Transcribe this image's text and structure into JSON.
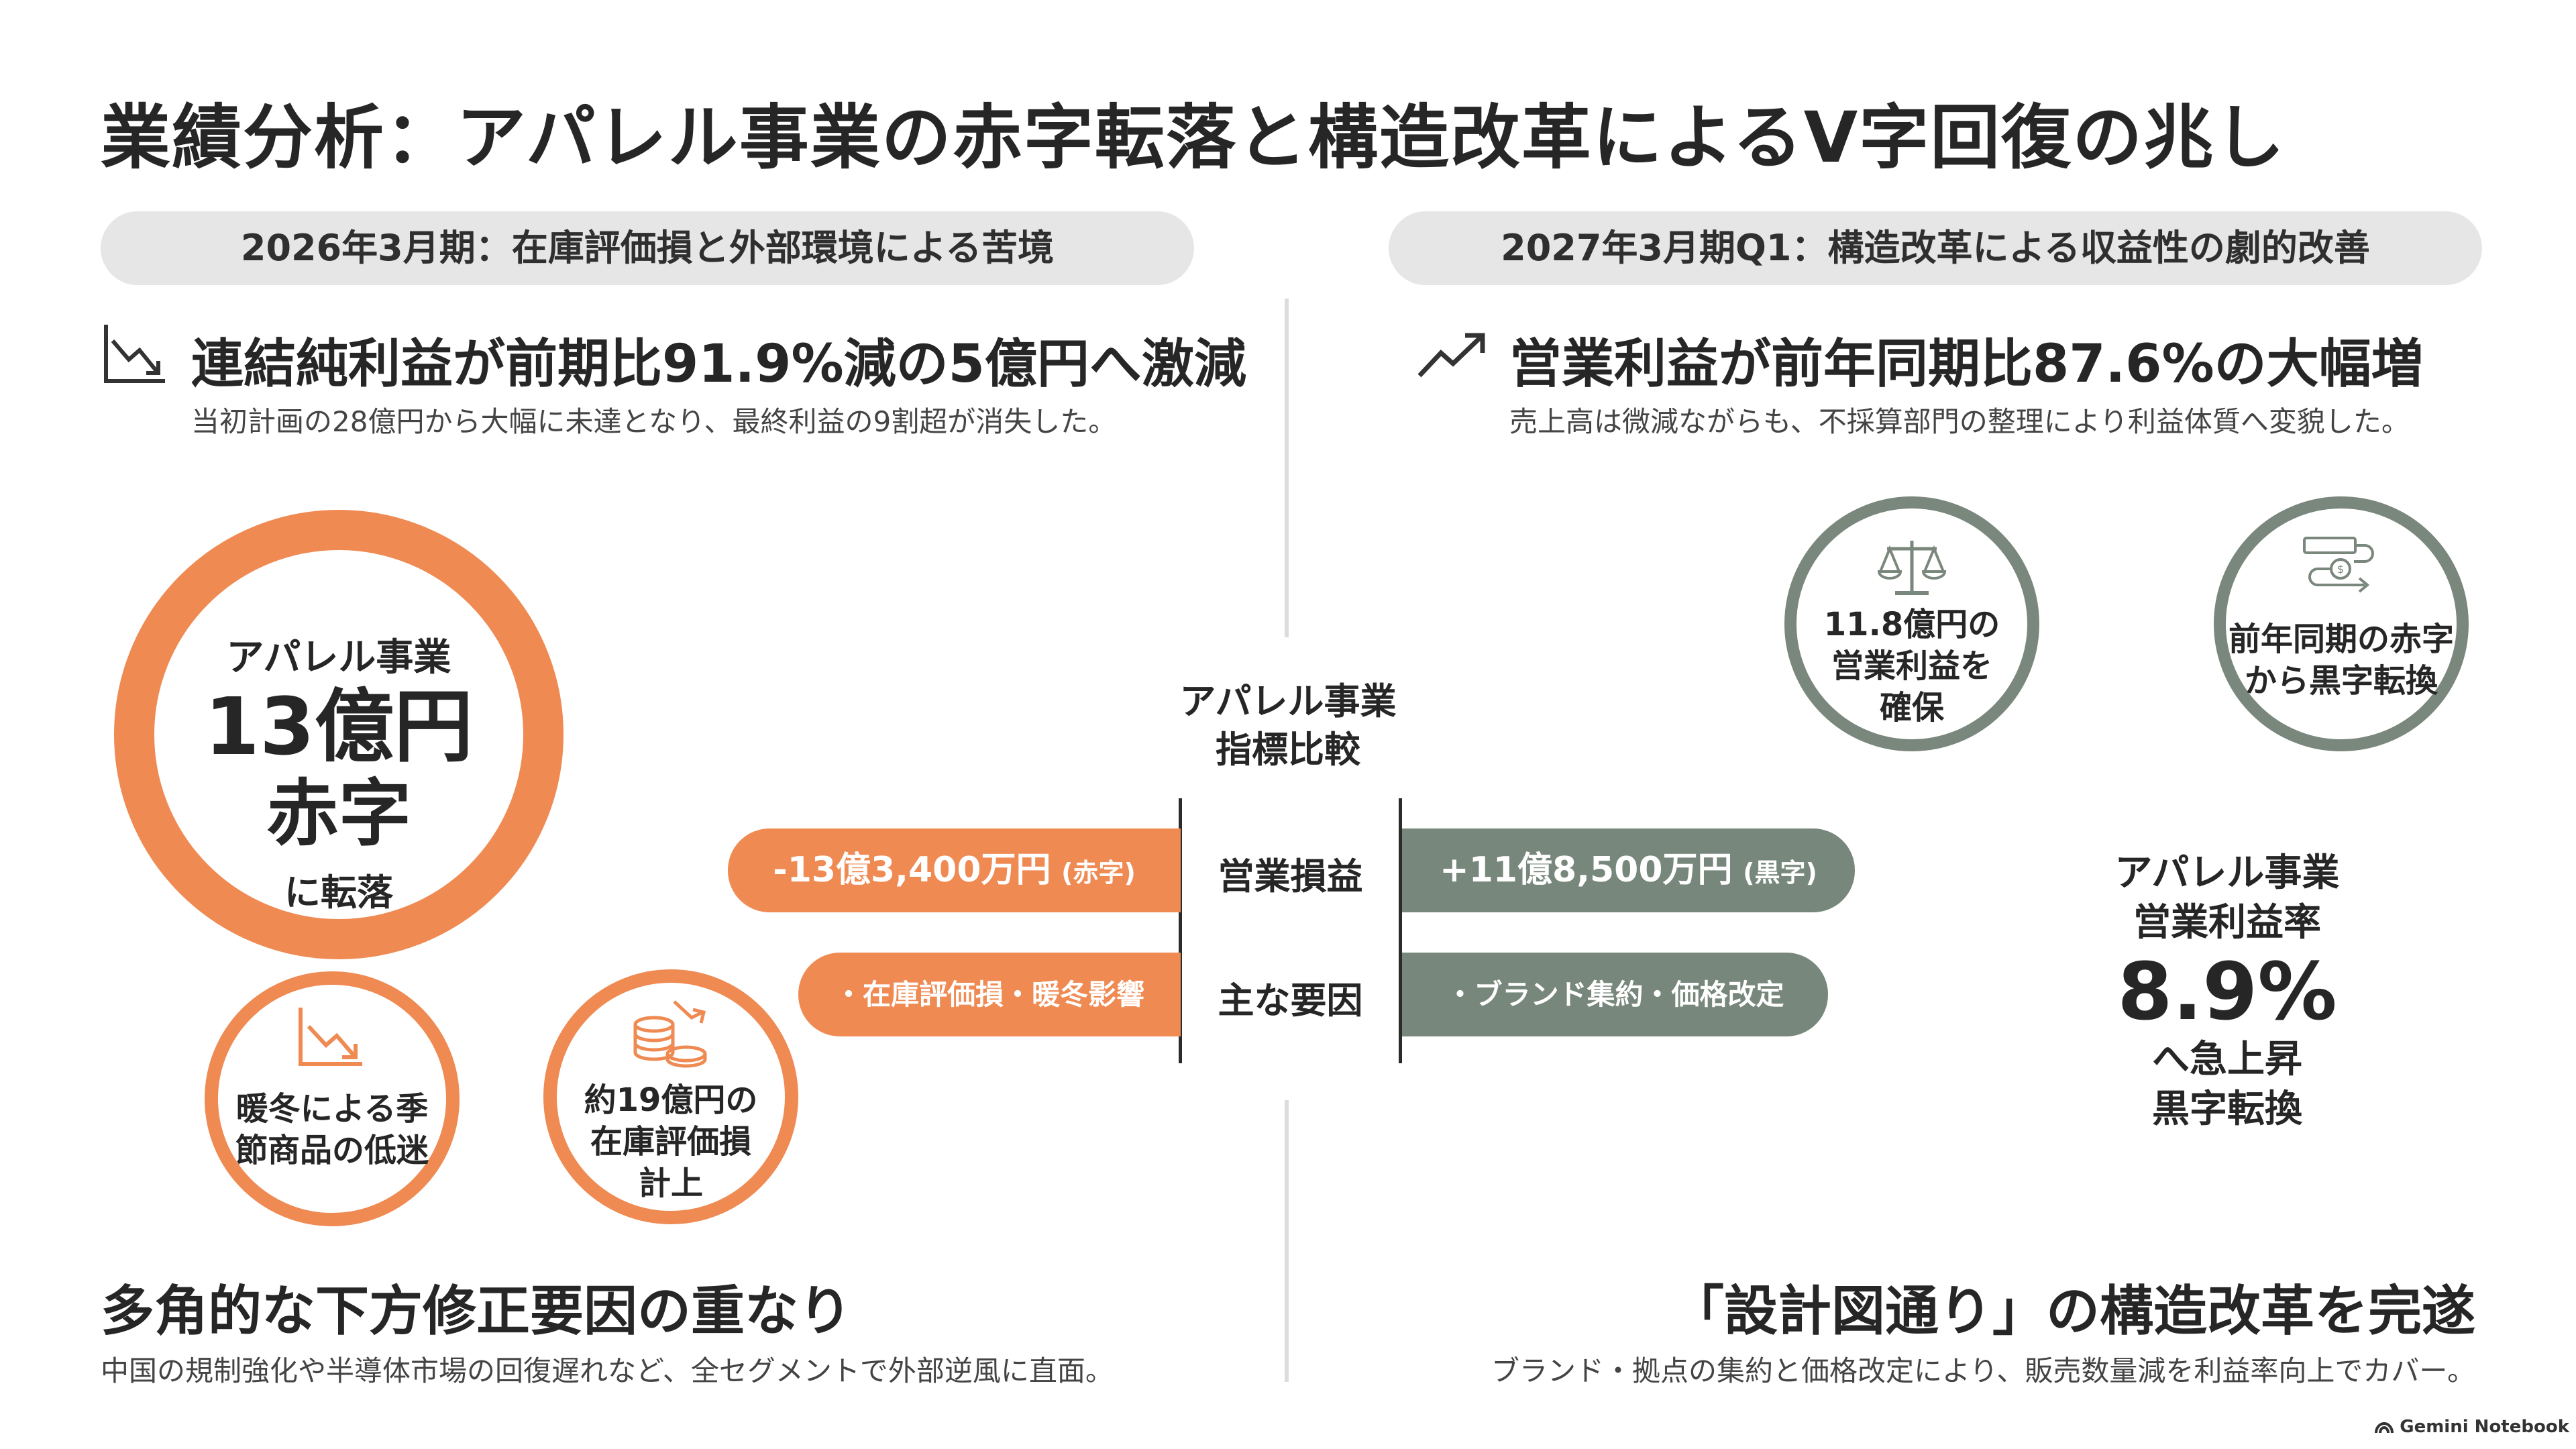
{
  "title": "業績分析：アパレル事業の赤字転落と構造改革によるV字回復の兆し",
  "left": {
    "period": "2026年3月期：在庫評価損と外部環境による苦境",
    "headline": "連結純利益が前期比91.9%減の5億円へ激減",
    "sub": "当初計画の28億円から大幅に未達となり、最終利益の9割超が消失した。",
    "big_ring": {
      "line1": "アパレル事業",
      "line2": "13億円",
      "line3": "赤字",
      "line4": "に転落"
    },
    "factor1": {
      "line1": "暖冬による季",
      "line2": "節商品の低迷"
    },
    "factor2": {
      "line1": "約19億円の",
      "line2": "在庫評価損",
      "line3": "計上"
    },
    "bottom_headline": "多角的な下方修正要因の重なり",
    "bottom_sub": "中国の規制強化や半導体市場の回復遅れなど、全セグメントで外部逆風に直面。"
  },
  "right": {
    "period": "2027年3月期Q1：構造改革による収益性の劇的改善",
    "headline": "営業利益が前年同期比87.6%の大幅増",
    "sub": "売上高は微減ながらも、不採算部門の整理により利益体質へ変貌した。",
    "circle1": {
      "line1": "11.8億円の",
      "line2": "営業利益を",
      "line3": "確保"
    },
    "circle2": {
      "line1": "前年同期の赤字",
      "line2": "から黒字転換"
    },
    "rate": {
      "line1": "アパレル事業",
      "line2": "営業利益率",
      "value": "8.9%",
      "line3": "へ急上昇",
      "line4": "黒字転換"
    },
    "bottom_headline": "「設計図通り」の構造改革を完遂",
    "bottom_sub": "ブランド・拠点の集約と価格改定により、販売数量減を利益率向上でカバー。"
  },
  "compare": {
    "title_line1": "アパレル事業",
    "title_line2": "指標比較",
    "row1": {
      "label": "営業損益",
      "left_main": "-13億3,400万円",
      "left_note": "(赤字)",
      "right_main": "+11億8,500万円",
      "right_note": "(黒字)"
    },
    "row2": {
      "label": "主な要因",
      "left": "・在庫評価損・暖冬影響",
      "right": "・ブランド集約・価格改定"
    }
  },
  "brand": "Gemini Notebook",
  "colors": {
    "orange": "#ef8a52",
    "gray_green": "#78877b",
    "pill": "#e6e6e6"
  }
}
